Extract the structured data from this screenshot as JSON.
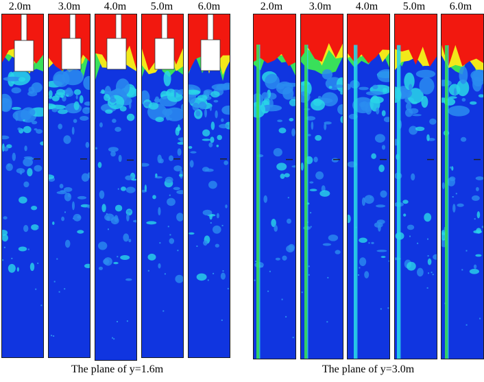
{
  "colors": {
    "background_blue": "#1035e0",
    "dark_blue": "#0a22c8",
    "light_blue": "#2a8cf0",
    "cyan": "#29d6e8",
    "green": "#39e05a",
    "yellow": "#f2e81a",
    "red": "#f2180f",
    "white": "#ffffff"
  },
  "figure": {
    "left_group": {
      "caption": "The plane of y=1.6m",
      "panel_labels": [
        "2.0m",
        "3.0m",
        "4.0m",
        "5.0m",
        "6.0m"
      ]
    },
    "right_group": {
      "caption": "The plane of y=3.0m",
      "panel_labels": [
        "2.0m",
        "3.0m",
        "4.0m",
        "5.0m",
        "6.0m"
      ]
    }
  }
}
